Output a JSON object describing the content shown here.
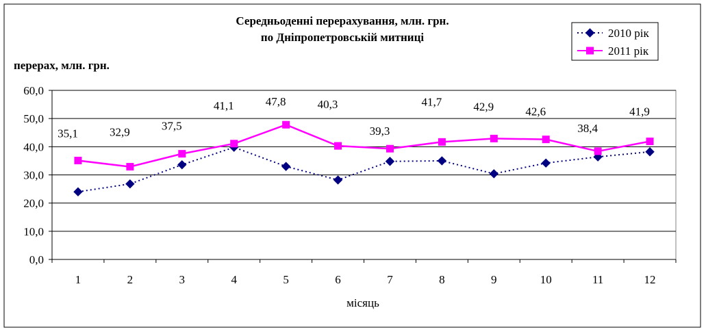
{
  "chart_data": {
    "type": "line",
    "title": "Середньоденні перерахування, млн. грн.",
    "subtitle": "по Дніпропетровській митниці",
    "ylabel": "перерах, млн. грн.",
    "xlabel": "місяць",
    "x": [
      1,
      2,
      3,
      4,
      5,
      6,
      7,
      8,
      9,
      10,
      11,
      12
    ],
    "ylim": [
      0,
      60
    ],
    "yticks": [
      "0,0",
      "10,0",
      "20,0",
      "30,0",
      "40,0",
      "50,0",
      "60,0"
    ],
    "grid": true,
    "legend_position": "top-right",
    "series": [
      {
        "name": "2010 рік",
        "color": "#000080",
        "line_style": "dotted",
        "marker": "diamond",
        "values": [
          24.0,
          26.8,
          33.6,
          39.8,
          33.0,
          28.2,
          34.8,
          35.0,
          30.4,
          34.2,
          36.4,
          38.2
        ]
      },
      {
        "name": "2011 рік",
        "color": "#FF00FF",
        "line_style": "solid",
        "marker": "square",
        "values": [
          35.1,
          32.9,
          37.5,
          41.1,
          47.8,
          40.3,
          39.3,
          41.7,
          42.9,
          42.6,
          38.4,
          41.9
        ],
        "labels": [
          "35,1",
          "32,9",
          "37,5",
          "41,1",
          "47,8",
          "40,3",
          "39,3",
          "41,7",
          "42,9",
          "42,6",
          "38,4",
          "41,9"
        ]
      }
    ]
  }
}
